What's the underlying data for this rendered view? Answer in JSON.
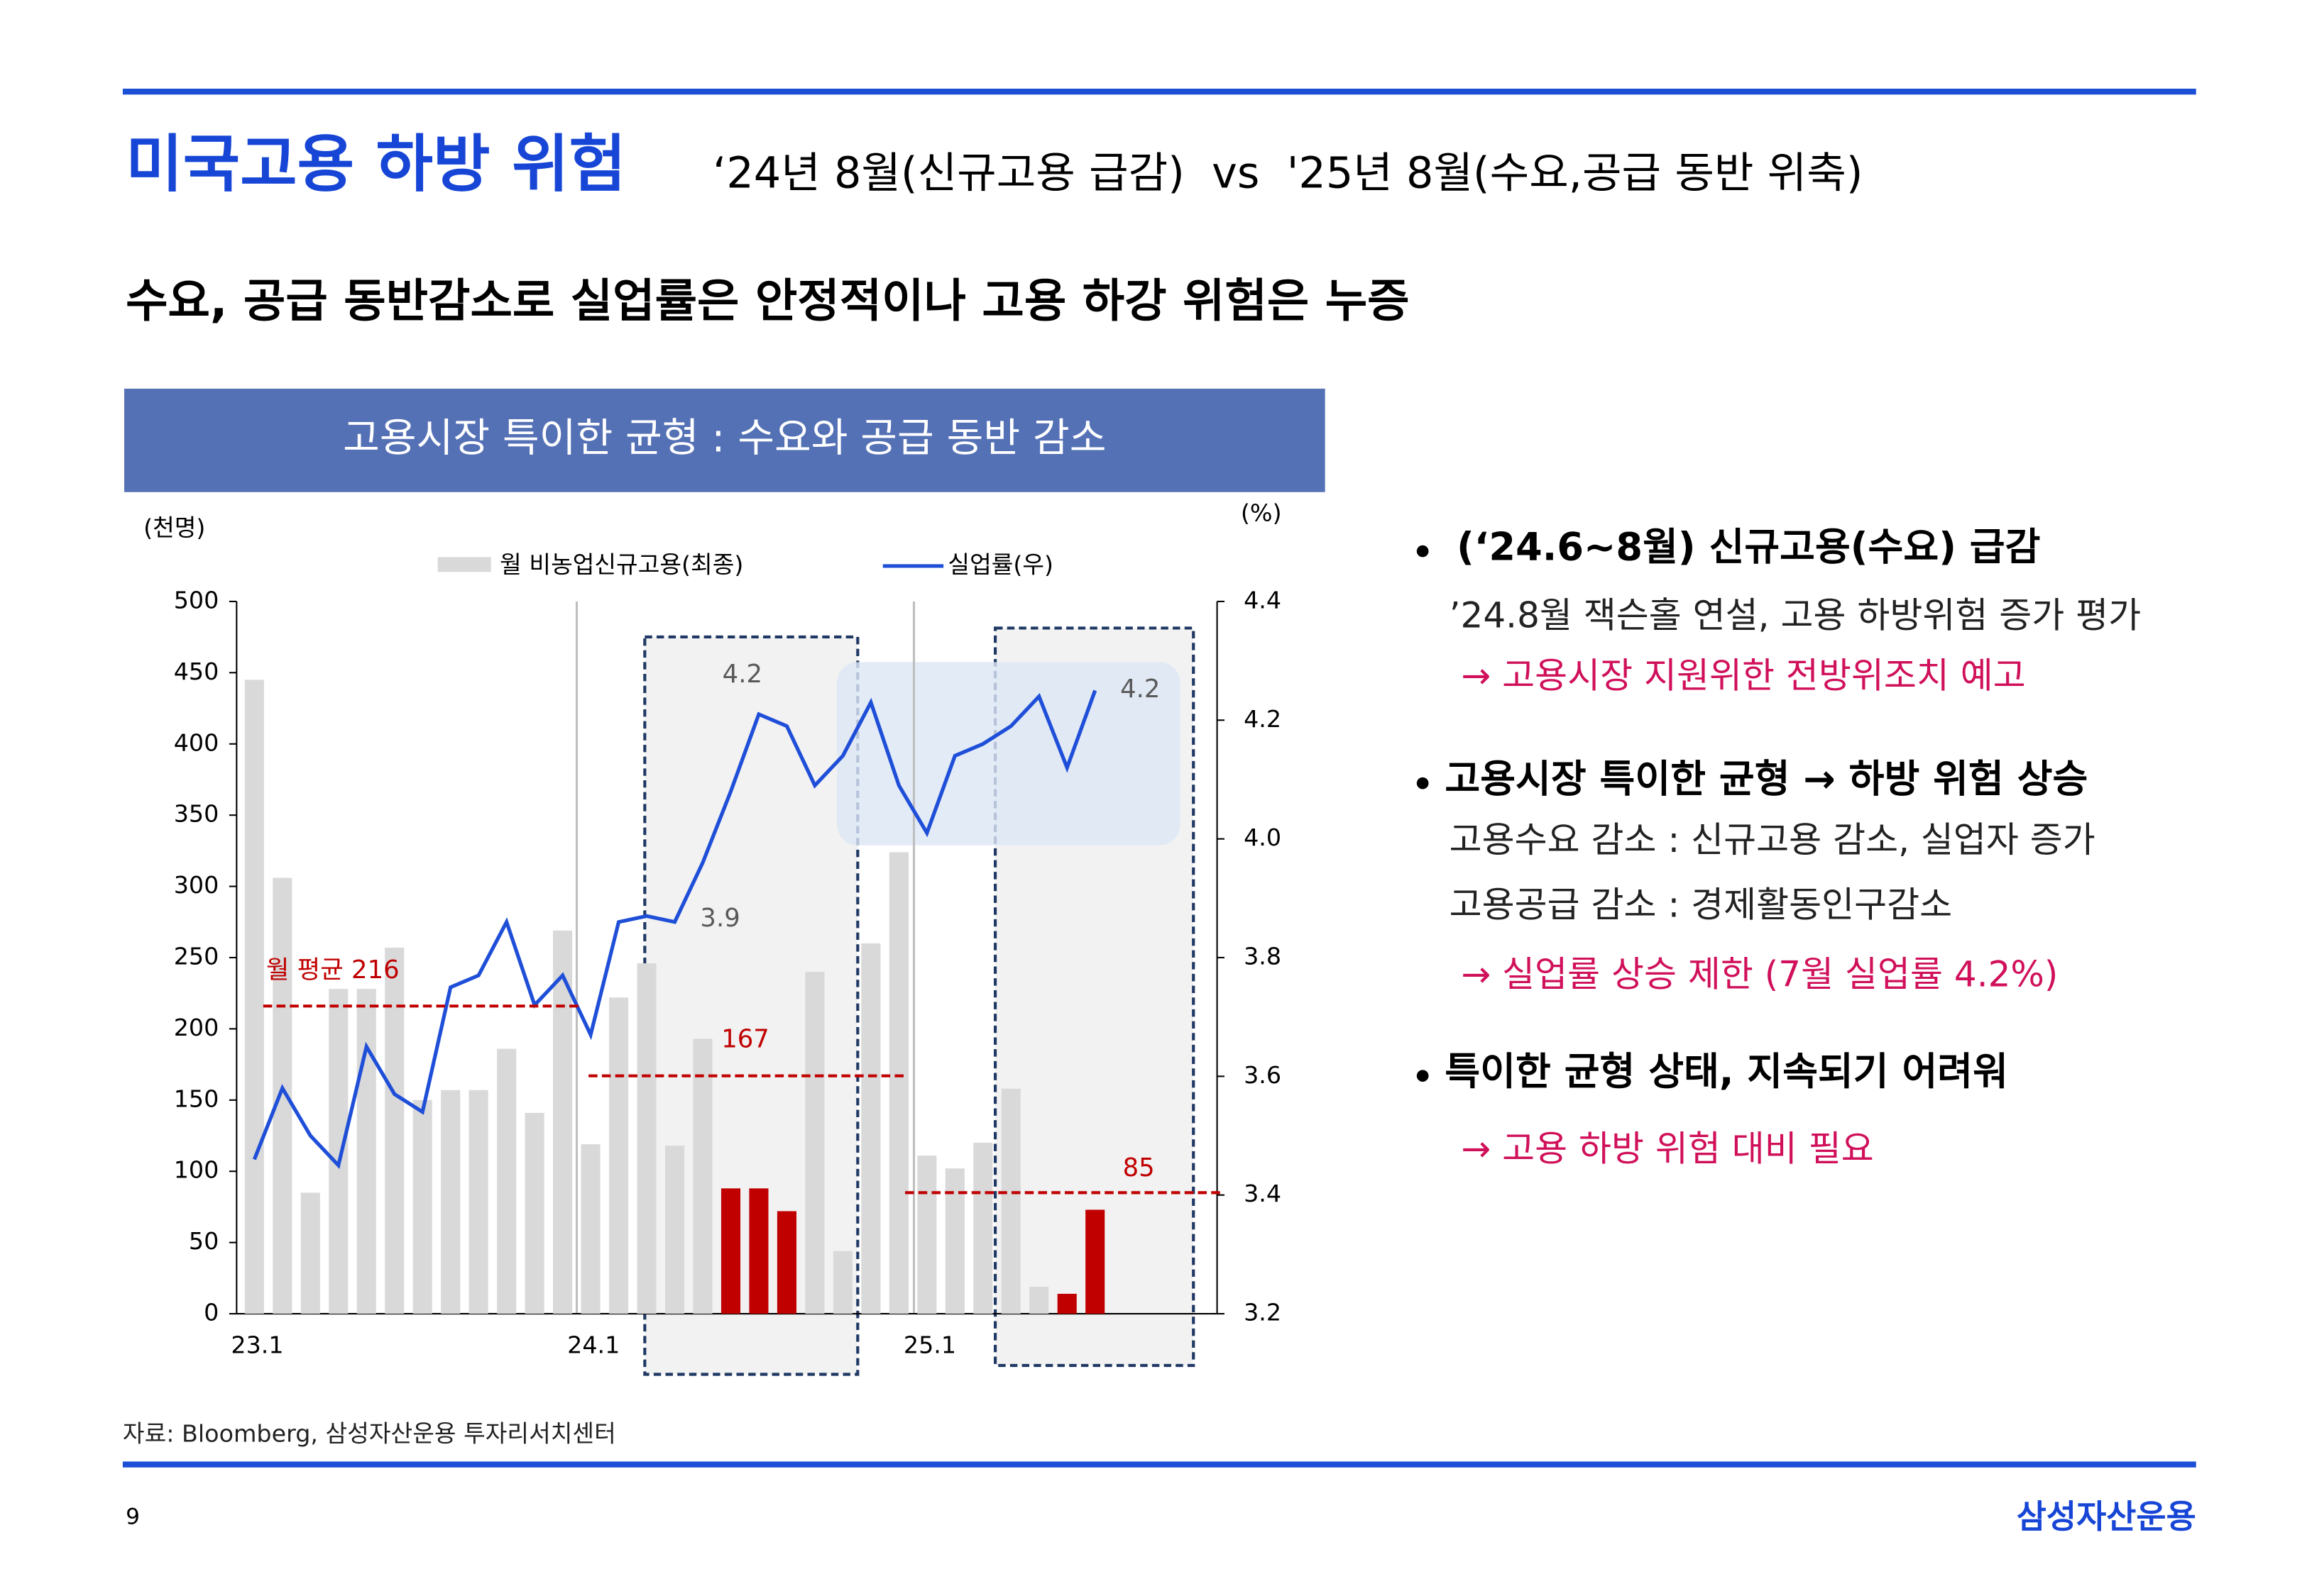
{
  "header": {
    "title": "미국고용 하방 위험",
    "subtitle": "‘24년 8월(신규고용 급감)  vs  '25년 8월(수요,공급 동반 위축)",
    "headline": "수요, 공급 동반감소로 실업률은 안정적이나 고용 하강 위험은 누증"
  },
  "chart_data": {
    "type": "bar-line",
    "title": "고용시장 특이한 균형 : 수요와 공급 동반 감소",
    "y_unit": "(천명)",
    "y2_unit": "(%)",
    "categories": [
      "23.1",
      null,
      null,
      null,
      null,
      null,
      null,
      null,
      null,
      null,
      null,
      null,
      "24.1",
      null,
      null,
      null,
      null,
      null,
      null,
      null,
      null,
      null,
      null,
      null,
      "25.1",
      null,
      null,
      null,
      null,
      null,
      null
    ],
    "series": [
      {
        "name": "월 비농업신규고용(최종)",
        "type": "bar",
        "color": "#d9d9d9",
        "colors": [
          "#d9d9d9",
          "#d9d9d9",
          "#d9d9d9",
          "#d9d9d9",
          "#d9d9d9",
          "#d9d9d9",
          "#d9d9d9",
          "#d9d9d9",
          "#d9d9d9",
          "#d9d9d9",
          "#d9d9d9",
          "#d9d9d9",
          "#d9d9d9",
          "#d9d9d9",
          "#d9d9d9",
          "#d9d9d9",
          "#d9d9d9",
          "#c00000",
          "#c00000",
          "#c00000",
          "#d9d9d9",
          "#d9d9d9",
          "#d9d9d9",
          "#d9d9d9",
          "#d9d9d9",
          "#d9d9d9",
          "#d9d9d9",
          "#d9d9d9",
          "#d9d9d9",
          "#c00000",
          "#c00000"
        ],
        "values": [
          445,
          306,
          85,
          228,
          228,
          257,
          150,
          157,
          157,
          186,
          141,
          269,
          119,
          222,
          246,
          118,
          193,
          88,
          88,
          72,
          240,
          44,
          260,
          324,
          111,
          102,
          120,
          158,
          19,
          14,
          73
        ]
      },
      {
        "name": "실업률(우)",
        "type": "line",
        "axis": "y2",
        "color": "#1f4fd8",
        "values": [
          3.46,
          3.58,
          3.5,
          3.45,
          3.65,
          3.57,
          3.54,
          3.75,
          3.77,
          3.86,
          3.72,
          3.77,
          3.67,
          3.86,
          3.87,
          3.86,
          3.96,
          4.08,
          4.21,
          4.19,
          4.09,
          4.14,
          4.23,
          4.09,
          4.01,
          4.14,
          4.16,
          4.19,
          4.24,
          4.12,
          4.25
        ]
      }
    ],
    "reference_lines": [
      {
        "label": "월 평균 216",
        "value": 216
      },
      {
        "label": "167",
        "value": 167
      },
      {
        "label": "85",
        "value": 85
      }
    ],
    "annotations": [
      "4.2",
      "3.9",
      "4.2"
    ],
    "ylim": [
      0,
      500
    ],
    "yticks": [
      0,
      50,
      100,
      150,
      200,
      250,
      300,
      350,
      400,
      450,
      500
    ],
    "y2lim": [
      3.2,
      4.4
    ],
    "y2ticks": [
      3.2,
      3.4,
      3.6,
      3.8,
      {
        "value": 4,
        "label": "4.0"
      },
      4.2,
      4.4
    ],
    "source": "자료: Bloomberg, 삼성자산운용 투자리서치센터"
  },
  "bullets": [
    {
      "heading": "(‘24.6~8월) 신규고용(수요) 급감",
      "lines": [
        "’24.8월 잭슨홀 연설, 고용 하방위험 증가 평가",
        "→ 고용시장 지원위한 전방위조치 예고"
      ]
    },
    {
      "heading": "고용시장 특이한 균형 → 하방 위험 상승",
      "lines": [
        "고용수요 감소 : 신규고용 감소, 실업자 증가",
        "고용공급 감소 : 경제활동인구감소",
        "→ 실업률 상승 제한 (7월 실업률 4.2%)"
      ]
    },
    {
      "heading": "특이한 균형 상태, 지속되기 어려워",
      "lines": [
        "→ 고용 하방 위험 대비 필요"
      ]
    }
  ],
  "footer": {
    "page": "9",
    "logo": "삼성자산운용"
  }
}
